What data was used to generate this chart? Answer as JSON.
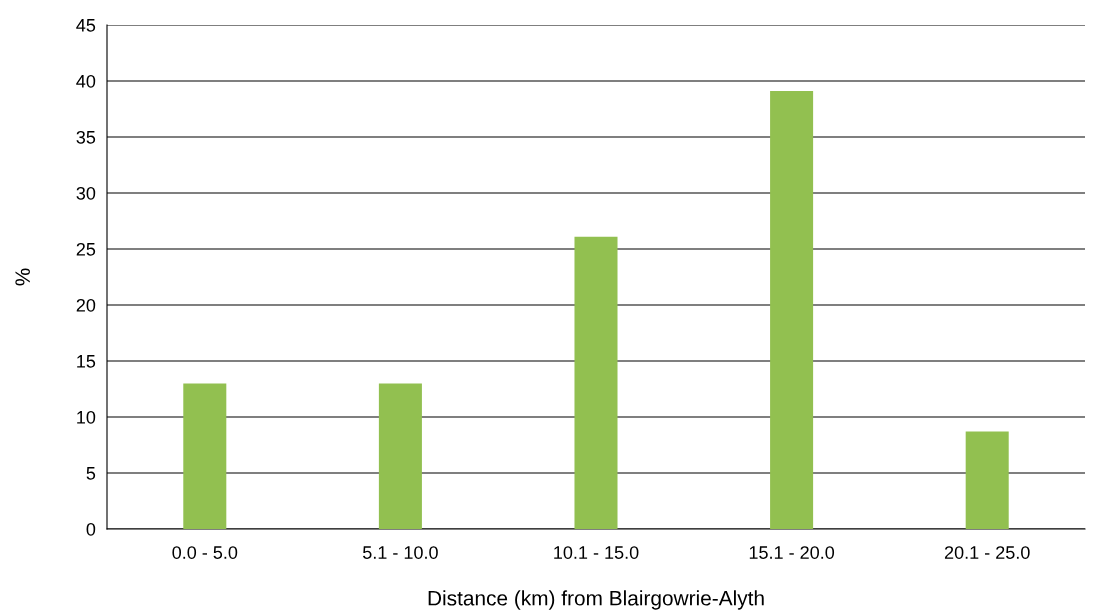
{
  "chart_data": {
    "type": "bar",
    "xlabel": "Distance (km) from Blairgowrie-Alyth",
    "ylabel": "%",
    "categories": [
      "0.0 - 5.0",
      "5.1 - 10.0",
      "10.1 - 15.0",
      "15.1 - 20.0",
      "20.1 - 25.0"
    ],
    "values": [
      13,
      13,
      26.1,
      39.1,
      8.7
    ],
    "color": "#92c050",
    "ylim": [
      0,
      45
    ],
    "yticks": [
      0,
      5,
      10,
      15,
      20,
      25,
      30,
      35,
      40,
      45
    ],
    "grid": "y",
    "legend": false
  }
}
